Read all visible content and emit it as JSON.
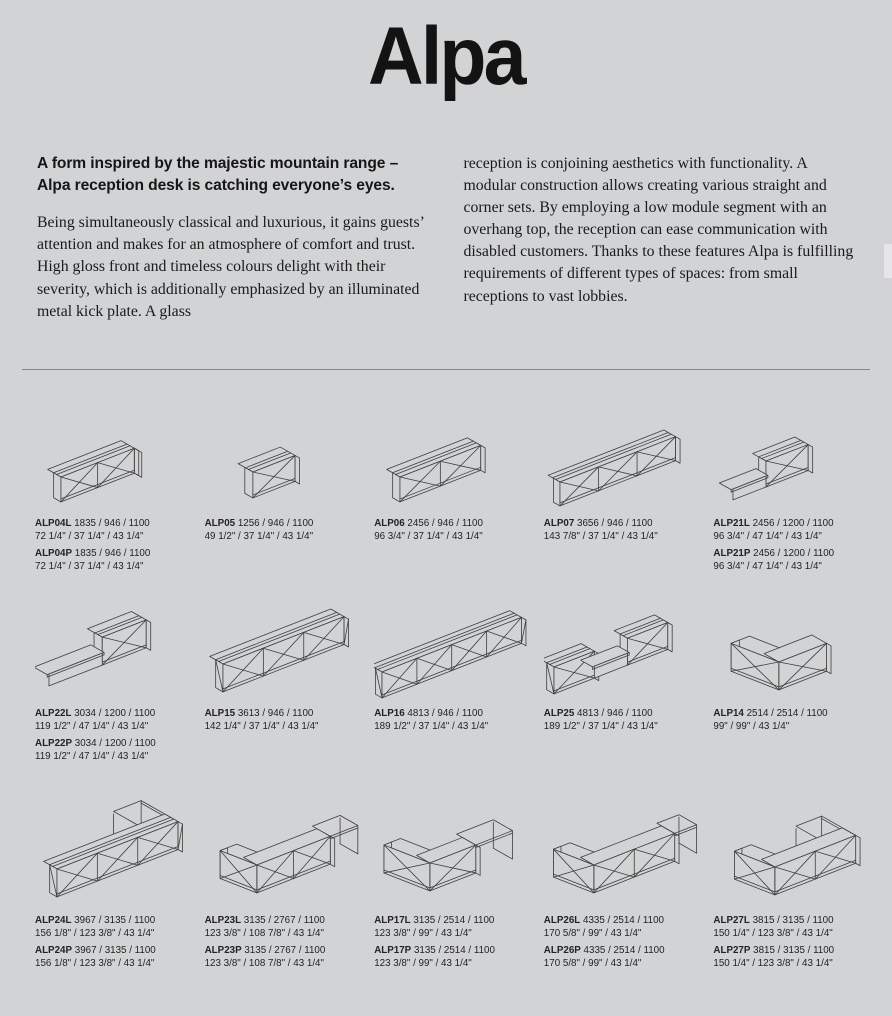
{
  "page": {
    "title": "Alpa",
    "background_color": "#d2d3d5",
    "line_color": "#3e3e3e",
    "text_color": "#1a1a1a"
  },
  "intro": {
    "lead": "A form inspired by the majestic mountain range – Alpa reception desk is catching everyone’s eyes.",
    "left_body": "Being simultaneously classical and luxurious, it gains guests’ attention and makes for an atmosphere of comfort and trust. High gloss front and timeless colours delight with their severity, which is additionally emphasized by an illuminated metal kick plate. A glass",
    "right_body": "reception is conjoining aesthetics with functionality. A modular construction allows creating various straight and corner sets. By employing a low module segment with an overhang top, the reception can ease communication with disabled customers. Thanks to these features Alpa is fulfilling requirements of different types of spaces: from small receptions to vast lobbies."
  },
  "catalog": {
    "rows": [
      [
        {
          "drawing": "desk-2-return",
          "items": [
            {
              "code": "ALP04L",
              "mm": "1835 / 946 / 1100",
              "in": "72 1/4\" / 37 1/4\" / 43 1/4\""
            },
            {
              "code": "ALP04P",
              "mm": "1835 / 946 / 1100",
              "in": "72 1/4\" / 37 1/4\" / 43 1/4\""
            }
          ]
        },
        {
          "drawing": "desk-1",
          "items": [
            {
              "code": "ALP05",
              "mm": "1256 / 946 / 1100",
              "in": "49 1/2\" / 37 1/4\" / 43 1/4\""
            }
          ]
        },
        {
          "drawing": "desk-2",
          "items": [
            {
              "code": "ALP06",
              "mm": "2456 / 946 / 1100",
              "in": "96 3/4\" / 37 1/4\" / 43 1/4\""
            }
          ]
        },
        {
          "drawing": "desk-3",
          "items": [
            {
              "code": "ALP07",
              "mm": "3656 / 946 / 1100",
              "in": "143 7/8\" / 37 1/4\" / 43 1/4\""
            }
          ]
        },
        {
          "drawing": "low-tall",
          "items": [
            {
              "code": "ALP21L",
              "mm": "2456 / 1200 / 1100",
              "in": "96 3/4\" / 47 1/4\" / 43 1/4\""
            },
            {
              "code": "ALP21P",
              "mm": "2456 / 1200 / 1100",
              "in": "96 3/4\" / 47 1/4\" / 43 1/4\""
            }
          ]
        }
      ],
      [
        {
          "drawing": "low-tall-long",
          "items": [
            {
              "code": "ALP22L",
              "mm": "3034 / 1200 / 1100",
              "in": "119 1/2\" / 47 1/4\" / 43 1/4\""
            },
            {
              "code": "ALP22P",
              "mm": "3034 / 1200 / 1100",
              "in": "119 1/2\" / 47 1/4\" / 43 1/4\""
            }
          ]
        },
        {
          "drawing": "desk-3-caps",
          "items": [
            {
              "code": "ALP15",
              "mm": "3613 / 946 / 1100",
              "in": "142 1/4\" / 37 1/4\" / 43 1/4\""
            }
          ]
        },
        {
          "drawing": "desk-4",
          "items": [
            {
              "code": "ALP16",
              "mm": "4813 / 946 / 1100",
              "in": "189 1/2\" / 37 1/4\" / 43 1/4\""
            }
          ]
        },
        {
          "drawing": "tall-low-tall",
          "items": [
            {
              "code": "ALP25",
              "mm": "4813 / 946 / 1100",
              "in": "189 1/2\" / 37 1/4\" / 43 1/4\""
            }
          ]
        },
        {
          "drawing": "v-1-1",
          "items": [
            {
              "code": "ALP14",
              "mm": "2514 / 2514 / 1100",
              "in": "99\" / 99\" / 43 1/4\""
            }
          ]
        }
      ],
      [
        {
          "drawing": "l-return-table",
          "items": [
            {
              "code": "ALP24L",
              "mm": "3967 / 3135 / 1100",
              "in": "156 1/8\" / 123 3/8\" / 43 1/4\""
            },
            {
              "code": "ALP24P",
              "mm": "3967 / 3135 / 1100",
              "in": "156 1/8\" / 123 3/8\" / 43 1/4\""
            }
          ]
        },
        {
          "drawing": "v-table-2",
          "items": [
            {
              "code": "ALP23L",
              "mm": "3135 / 2767 / 1100",
              "in": "123 3/8\" / 108 7/8\" / 43 1/4\""
            },
            {
              "code": "ALP23P",
              "mm": "3135 / 2767 / 1100",
              "in": "123 3/8\" / 108 7/8\" / 43 1/4\""
            }
          ]
        },
        {
          "drawing": "v-table-1",
          "items": [
            {
              "code": "ALP17L",
              "mm": "3135 / 2514 / 1100",
              "in": "123 3/8\" / 99\" / 43 1/4\""
            },
            {
              "code": "ALP17P",
              "mm": "3135 / 2514 / 1100",
              "in": "123 3/8\" / 99\" / 43 1/4\""
            }
          ]
        },
        {
          "drawing": "v-table-2s",
          "items": [
            {
              "code": "ALP26L",
              "mm": "4335 / 2514 / 1100",
              "in": "170 5/8\" / 99\" / 43 1/4\""
            },
            {
              "code": "ALP26P",
              "mm": "4335 / 2514 / 1100",
              "in": "170 5/8\" / 99\" / 43 1/4\""
            }
          ]
        },
        {
          "drawing": "v-return",
          "items": [
            {
              "code": "ALP27L",
              "mm": "3815 / 3135 / 1100",
              "in": "150 1/4\" / 123 3/8\" / 43 1/4\""
            },
            {
              "code": "ALP27P",
              "mm": "3815 / 3135 / 1100",
              "in": "150 1/4\" / 123 3/8\" / 43 1/4\""
            }
          ]
        }
      ]
    ]
  }
}
